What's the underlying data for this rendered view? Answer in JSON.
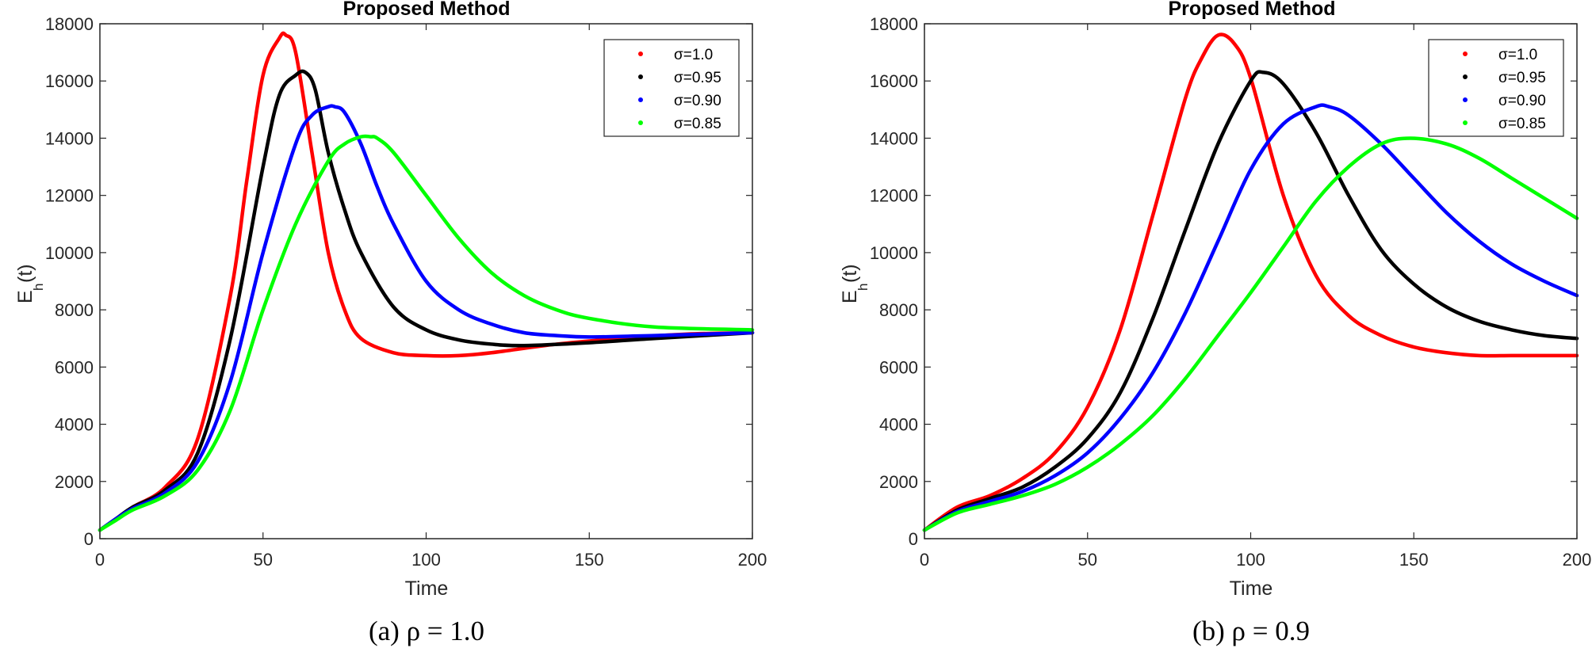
{
  "chart_data": [
    {
      "type": "line",
      "title": "Proposed Method",
      "caption": "(a) ρ = 1.0",
      "xlabel": "Time",
      "ylabel_main": "E",
      "ylabel_sub": "h",
      "ylabel_tail": " (t)",
      "xlim": [
        0,
        200
      ],
      "ylim": [
        0,
        18000
      ],
      "xticks": [
        "0",
        "50",
        "100",
        "150",
        "200"
      ],
      "yticks": [
        "0",
        "2000",
        "4000",
        "6000",
        "8000",
        "10000",
        "12000",
        "14000",
        "16000",
        "18000"
      ],
      "legend": "top-right",
      "series": [
        {
          "name": "σ=1.0",
          "color": "#ff0000",
          "x": [
            0,
            5,
            10,
            20,
            30,
            40,
            45,
            50,
            55,
            57,
            60,
            65,
            70,
            75,
            80,
            90,
            100,
            110,
            120,
            140,
            160,
            180,
            200
          ],
          "y": [
            300,
            700,
            1100,
            1800,
            3500,
            8500,
            12500,
            16200,
            17500,
            17600,
            17000,
            13500,
            10000,
            8000,
            7000,
            6500,
            6400,
            6400,
            6500,
            6800,
            7000,
            7150,
            7200
          ]
        },
        {
          "name": "σ=0.95",
          "color": "#000000",
          "x": [
            0,
            5,
            10,
            20,
            30,
            40,
            50,
            55,
            60,
            63,
            66,
            70,
            75,
            80,
            90,
            100,
            110,
            120,
            130,
            150,
            170,
            200
          ],
          "y": [
            300,
            700,
            1100,
            1700,
            3000,
            7000,
            13000,
            15500,
            16200,
            16300,
            15700,
            13500,
            11500,
            10000,
            8100,
            7300,
            6950,
            6800,
            6750,
            6850,
            7000,
            7200
          ]
        },
        {
          "name": "σ=0.90",
          "color": "#0000ff",
          "x": [
            0,
            5,
            10,
            20,
            30,
            40,
            50,
            60,
            65,
            70,
            72,
            75,
            80,
            85,
            90,
            100,
            110,
            120,
            130,
            140,
            150,
            170,
            200
          ],
          "y": [
            300,
            700,
            1050,
            1600,
            2700,
            5500,
            10000,
            13800,
            14800,
            15100,
            15100,
            14900,
            13800,
            12300,
            11000,
            9000,
            8000,
            7500,
            7200,
            7100,
            7050,
            7100,
            7200
          ]
        },
        {
          "name": "σ=0.85",
          "color": "#00ff00",
          "x": [
            0,
            5,
            10,
            20,
            30,
            40,
            50,
            60,
            70,
            75,
            80,
            83,
            85,
            90,
            100,
            110,
            120,
            130,
            140,
            150,
            170,
            200
          ],
          "y": [
            300,
            650,
            1000,
            1500,
            2400,
            4500,
            8000,
            11000,
            13200,
            13800,
            14050,
            14050,
            14000,
            13500,
            12000,
            10500,
            9300,
            8500,
            8000,
            7700,
            7400,
            7300
          ]
        }
      ]
    },
    {
      "type": "line",
      "title": "Proposed Method",
      "caption": "(b) ρ = 0.9",
      "xlabel": "Time",
      "ylabel_main": "E",
      "ylabel_sub": "h",
      "ylabel_tail": " (t)",
      "xlim": [
        0,
        200
      ],
      "ylim": [
        0,
        18000
      ],
      "xticks": [
        "0",
        "50",
        "100",
        "150",
        "200"
      ],
      "yticks": [
        "0",
        "2000",
        "4000",
        "6000",
        "8000",
        "10000",
        "12000",
        "14000",
        "16000",
        "18000"
      ],
      "legend": "top-right",
      "series": [
        {
          "name": "σ=1.0",
          "color": "#ff0000",
          "x": [
            0,
            10,
            20,
            30,
            40,
            50,
            60,
            70,
            80,
            85,
            90,
            95,
            100,
            110,
            120,
            130,
            140,
            150,
            160,
            170,
            180,
            190,
            200
          ],
          "y": [
            300,
            1100,
            1500,
            2100,
            3000,
            4600,
            7300,
            11300,
            15400,
            16800,
            17600,
            17300,
            16100,
            12000,
            9200,
            7800,
            7100,
            6700,
            6500,
            6400,
            6400,
            6400,
            6400
          ]
        },
        {
          "name": "σ=0.95",
          "color": "#000000",
          "x": [
            0,
            10,
            20,
            30,
            40,
            50,
            60,
            70,
            80,
            90,
            100,
            104,
            110,
            120,
            130,
            140,
            150,
            160,
            170,
            180,
            190,
            200
          ],
          "y": [
            300,
            1000,
            1400,
            1800,
            2500,
            3500,
            5100,
            7700,
            10800,
            13800,
            16000,
            16300,
            15900,
            14200,
            12000,
            10100,
            8900,
            8100,
            7600,
            7300,
            7100,
            7000
          ]
        },
        {
          "name": "σ=0.90",
          "color": "#0000ff",
          "x": [
            0,
            10,
            20,
            30,
            40,
            50,
            60,
            70,
            80,
            90,
            100,
            110,
            120,
            124,
            130,
            140,
            150,
            160,
            170,
            180,
            190,
            200
          ],
          "y": [
            300,
            950,
            1300,
            1650,
            2200,
            3000,
            4200,
            5800,
            7900,
            10400,
            12900,
            14500,
            15100,
            15100,
            14800,
            13800,
            12600,
            11400,
            10400,
            9600,
            9000,
            8500
          ]
        },
        {
          "name": "σ=0.85",
          "color": "#00ff00",
          "x": [
            0,
            10,
            20,
            30,
            40,
            50,
            60,
            70,
            80,
            90,
            100,
            110,
            120,
            130,
            140,
            149,
            160,
            170,
            180,
            190,
            200
          ],
          "y": [
            300,
            900,
            1200,
            1500,
            1900,
            2500,
            3300,
            4300,
            5600,
            7100,
            8600,
            10200,
            11800,
            13000,
            13800,
            14000,
            13800,
            13300,
            12600,
            11900,
            11200
          ]
        }
      ]
    }
  ]
}
